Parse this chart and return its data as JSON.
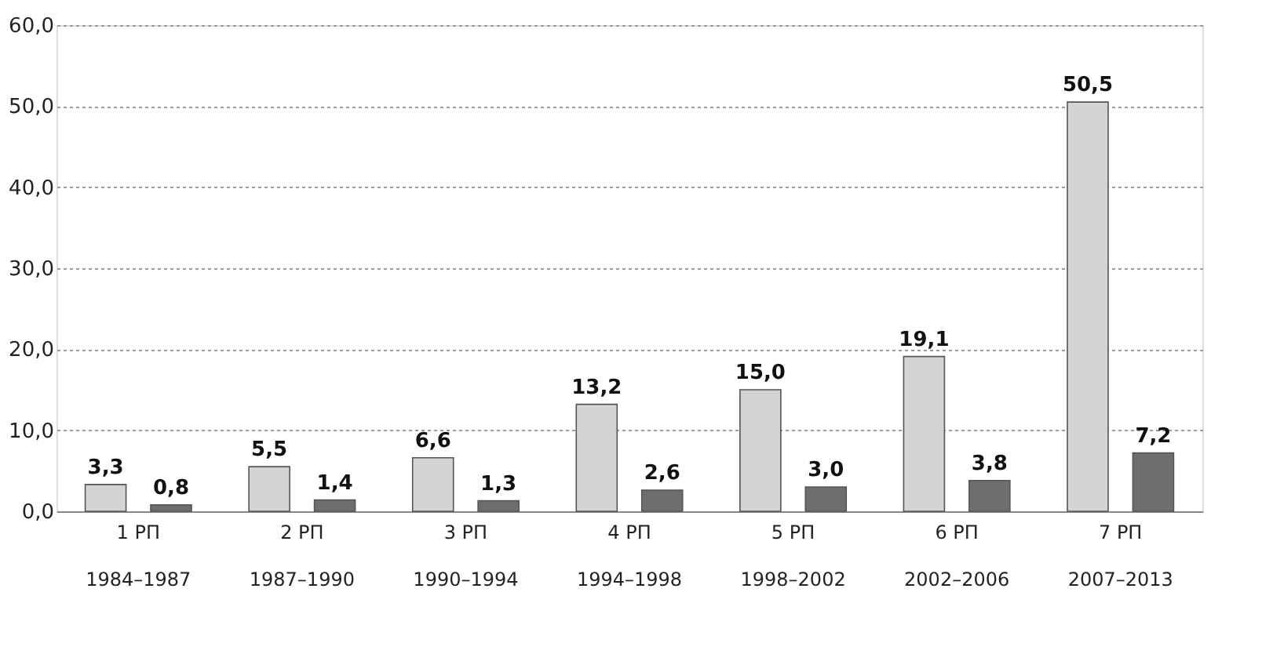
{
  "chart_data": {
    "type": "bar",
    "categories": [
      "1 РП\n1984–1987",
      "2 РП\n1987–1990",
      "3 РП\n1990–1994",
      "4 РП\n1994–1998",
      "5 РП\n1998–2002",
      "6 РП\n2002–2006",
      "7 РП\n2007–2013"
    ],
    "series": [
      {
        "color": "#d4d4d4",
        "values": [
          3.3,
          5.5,
          6.6,
          13.2,
          15.0,
          19.1,
          50.5
        ],
        "value_labels": [
          "3,3",
          "5,5",
          "6,6",
          "13,2",
          "15,0",
          "19,1",
          "50,5"
        ]
      },
      {
        "color": "#6e6e6e",
        "values": [
          0.8,
          1.4,
          1.3,
          2.6,
          3.0,
          3.8,
          7.2
        ],
        "value_labels": [
          "0,8",
          "1,4",
          "1,3",
          "2,6",
          "3,0",
          "3,8",
          "7,2"
        ]
      }
    ],
    "ylim": [
      0,
      60
    ],
    "yticks": [
      {
        "value": 0,
        "label": "0,0"
      },
      {
        "value": 10,
        "label": "10,0"
      },
      {
        "value": 20,
        "label": "20,0"
      },
      {
        "value": 30,
        "label": "30,0"
      },
      {
        "value": 40,
        "label": "40,0"
      },
      {
        "value": 50,
        "label": "50,0"
      },
      {
        "value": 60,
        "label": "60,0"
      }
    ],
    "grid": "y",
    "legend": false
  }
}
